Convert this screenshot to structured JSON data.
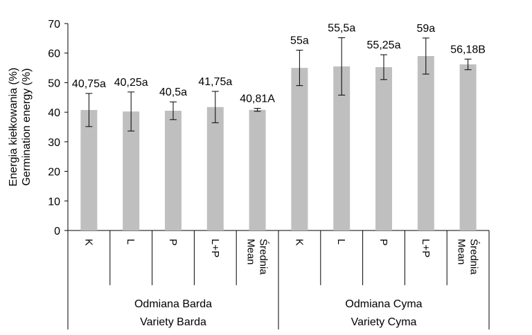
{
  "chart_data": {
    "type": "bar",
    "ylabel_lines": [
      "Energia kiełkowania (%)",
      "Germination energy (%)"
    ],
    "ylim": [
      0,
      70
    ],
    "yticks": [
      0,
      10,
      20,
      30,
      40,
      50,
      60,
      70
    ],
    "ytick_labels": [
      "0",
      "10",
      "20",
      "30",
      "40",
      "50",
      "60",
      "70"
    ],
    "grid": false,
    "legend": "none",
    "bar_color": "#bfbfbf",
    "groups": [
      {
        "label_lines": [
          "Odmiana Barda",
          "Variety Barda"
        ],
        "bars": [
          {
            "category": "K",
            "value": 40.75,
            "err": 5.6,
            "label": "40,75a"
          },
          {
            "category": "L",
            "value": 40.25,
            "err": 6.6,
            "label": "40,25a"
          },
          {
            "category": "P",
            "value": 40.5,
            "err": 3.0,
            "label": "40,5a"
          },
          {
            "category": "L+P",
            "value": 41.75,
            "err": 5.3,
            "label": "41,75a"
          },
          {
            "category_lines": [
              "Średnia",
              "Mean"
            ],
            "value": 40.81,
            "err": 0.5,
            "label": "40,81A"
          }
        ]
      },
      {
        "label_lines": [
          "Odmiana Cyma",
          "Variety Cyma"
        ],
        "bars": [
          {
            "category": "K",
            "value": 55.0,
            "err": 6.0,
            "label": "55a"
          },
          {
            "category": "L",
            "value": 55.5,
            "err": 9.7,
            "label": "55,5a"
          },
          {
            "category": "P",
            "value": 55.25,
            "err": 4.2,
            "label": "55,25a"
          },
          {
            "category": "L+P",
            "value": 59.0,
            "err": 6.1,
            "label": "59a"
          },
          {
            "category_lines": [
              "Średnia",
              "Mean"
            ],
            "value": 56.18,
            "err": 1.8,
            "label": "56,18B"
          }
        ]
      }
    ]
  }
}
